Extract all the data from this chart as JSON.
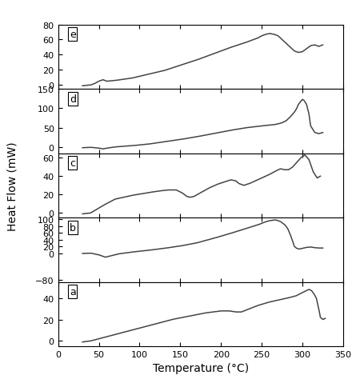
{
  "xlim": [
    0,
    350
  ],
  "xlabel": "Temperature (°C)",
  "ylabel": "Heat Flow (mW)",
  "xticks": [
    0,
    50,
    100,
    150,
    200,
    250,
    300,
    350
  ],
  "panels": [
    {
      "label": "e",
      "ylim": [
        -5,
        80
      ],
      "yticks": [
        0,
        20,
        40,
        60,
        80
      ],
      "curve_x": [
        30,
        40,
        45,
        50,
        55,
        60,
        70,
        90,
        110,
        130,
        150,
        170,
        190,
        210,
        230,
        245,
        250,
        255,
        260,
        265,
        270,
        275,
        280,
        285,
        290,
        295,
        300,
        305,
        310,
        315,
        320,
        325
      ],
      "curve_y": [
        -1,
        0,
        2,
        5,
        7,
        5,
        6,
        9,
        14,
        19,
        26,
        33,
        41,
        49,
        56,
        62,
        65,
        67,
        68,
        67,
        65,
        60,
        55,
        50,
        45,
        43,
        44,
        48,
        52,
        53,
        51,
        53
      ]
    },
    {
      "label": "d",
      "ylim": [
        -15,
        150
      ],
      "yticks": [
        0,
        50,
        100,
        150
      ],
      "curve_x": [
        30,
        40,
        50,
        55,
        60,
        70,
        90,
        110,
        130,
        150,
        170,
        190,
        210,
        230,
        250,
        265,
        270,
        275,
        280,
        285,
        290,
        293,
        295,
        298,
        300,
        302,
        305,
        308,
        310,
        315,
        320,
        325
      ],
      "curve_y": [
        -1,
        0,
        -2,
        -4,
        -2,
        1,
        4,
        8,
        14,
        20,
        27,
        35,
        43,
        50,
        55,
        58,
        60,
        63,
        68,
        78,
        90,
        100,
        110,
        118,
        123,
        120,
        110,
        85,
        55,
        38,
        35,
        38
      ]
    },
    {
      "label": "c",
      "ylim": [
        -5,
        65
      ],
      "yticks": [
        0,
        20,
        40,
        60
      ],
      "curve_x": [
        30,
        40,
        55,
        70,
        90,
        110,
        125,
        135,
        145,
        152,
        158,
        162,
        167,
        175,
        185,
        195,
        205,
        212,
        218,
        222,
        228,
        235,
        245,
        255,
        262,
        268,
        273,
        278,
        283,
        288,
        293,
        298,
        303,
        308,
        313,
        318,
        322
      ],
      "curve_y": [
        -1,
        0,
        8,
        15,
        19,
        22,
        24,
        25,
        25,
        22,
        18,
        17,
        18,
        22,
        27,
        31,
        34,
        36,
        35,
        32,
        30,
        32,
        36,
        40,
        43,
        46,
        48,
        47,
        47,
        50,
        55,
        60,
        63,
        58,
        45,
        38,
        40
      ]
    },
    {
      "label": "b",
      "ylim": [
        -85,
        105
      ],
      "yticks": [
        -80,
        0,
        20,
        40,
        60,
        80,
        100
      ],
      "curve_x": [
        30,
        40,
        50,
        58,
        65,
        75,
        90,
        110,
        130,
        150,
        170,
        190,
        210,
        230,
        245,
        252,
        258,
        263,
        267,
        270,
        273,
        276,
        279,
        282,
        285,
        288,
        290,
        293,
        296,
        300,
        305,
        310,
        315,
        320,
        325
      ],
      "curve_y": [
        -1,
        0,
        -5,
        -12,
        -8,
        -2,
        3,
        8,
        14,
        21,
        30,
        43,
        57,
        72,
        83,
        90,
        95,
        97,
        98,
        96,
        93,
        88,
        82,
        72,
        55,
        35,
        20,
        14,
        12,
        14,
        17,
        18,
        16,
        15,
        15
      ]
    },
    {
      "label": "a",
      "ylim": [
        -5,
        55
      ],
      "yticks": [
        0,
        20,
        40
      ],
      "curve_x": [
        30,
        40,
        60,
        80,
        100,
        120,
        140,
        160,
        180,
        200,
        210,
        218,
        225,
        235,
        245,
        258,
        270,
        282,
        292,
        300,
        305,
        308,
        311,
        314,
        317,
        320,
        322,
        325,
        328
      ],
      "curve_y": [
        -1,
        0,
        4,
        8,
        12,
        16,
        20,
        23,
        26,
        28,
        28,
        27,
        27,
        30,
        33,
        36,
        38,
        40,
        42,
        45,
        47,
        48,
        47,
        44,
        40,
        30,
        22,
        20,
        21
      ]
    }
  ],
  "line_color": "#444444",
  "linewidth": 1.1,
  "background_color": "#ffffff",
  "panel_label_fontsize": 9,
  "axis_label_fontsize": 10,
  "tick_fontsize": 8
}
